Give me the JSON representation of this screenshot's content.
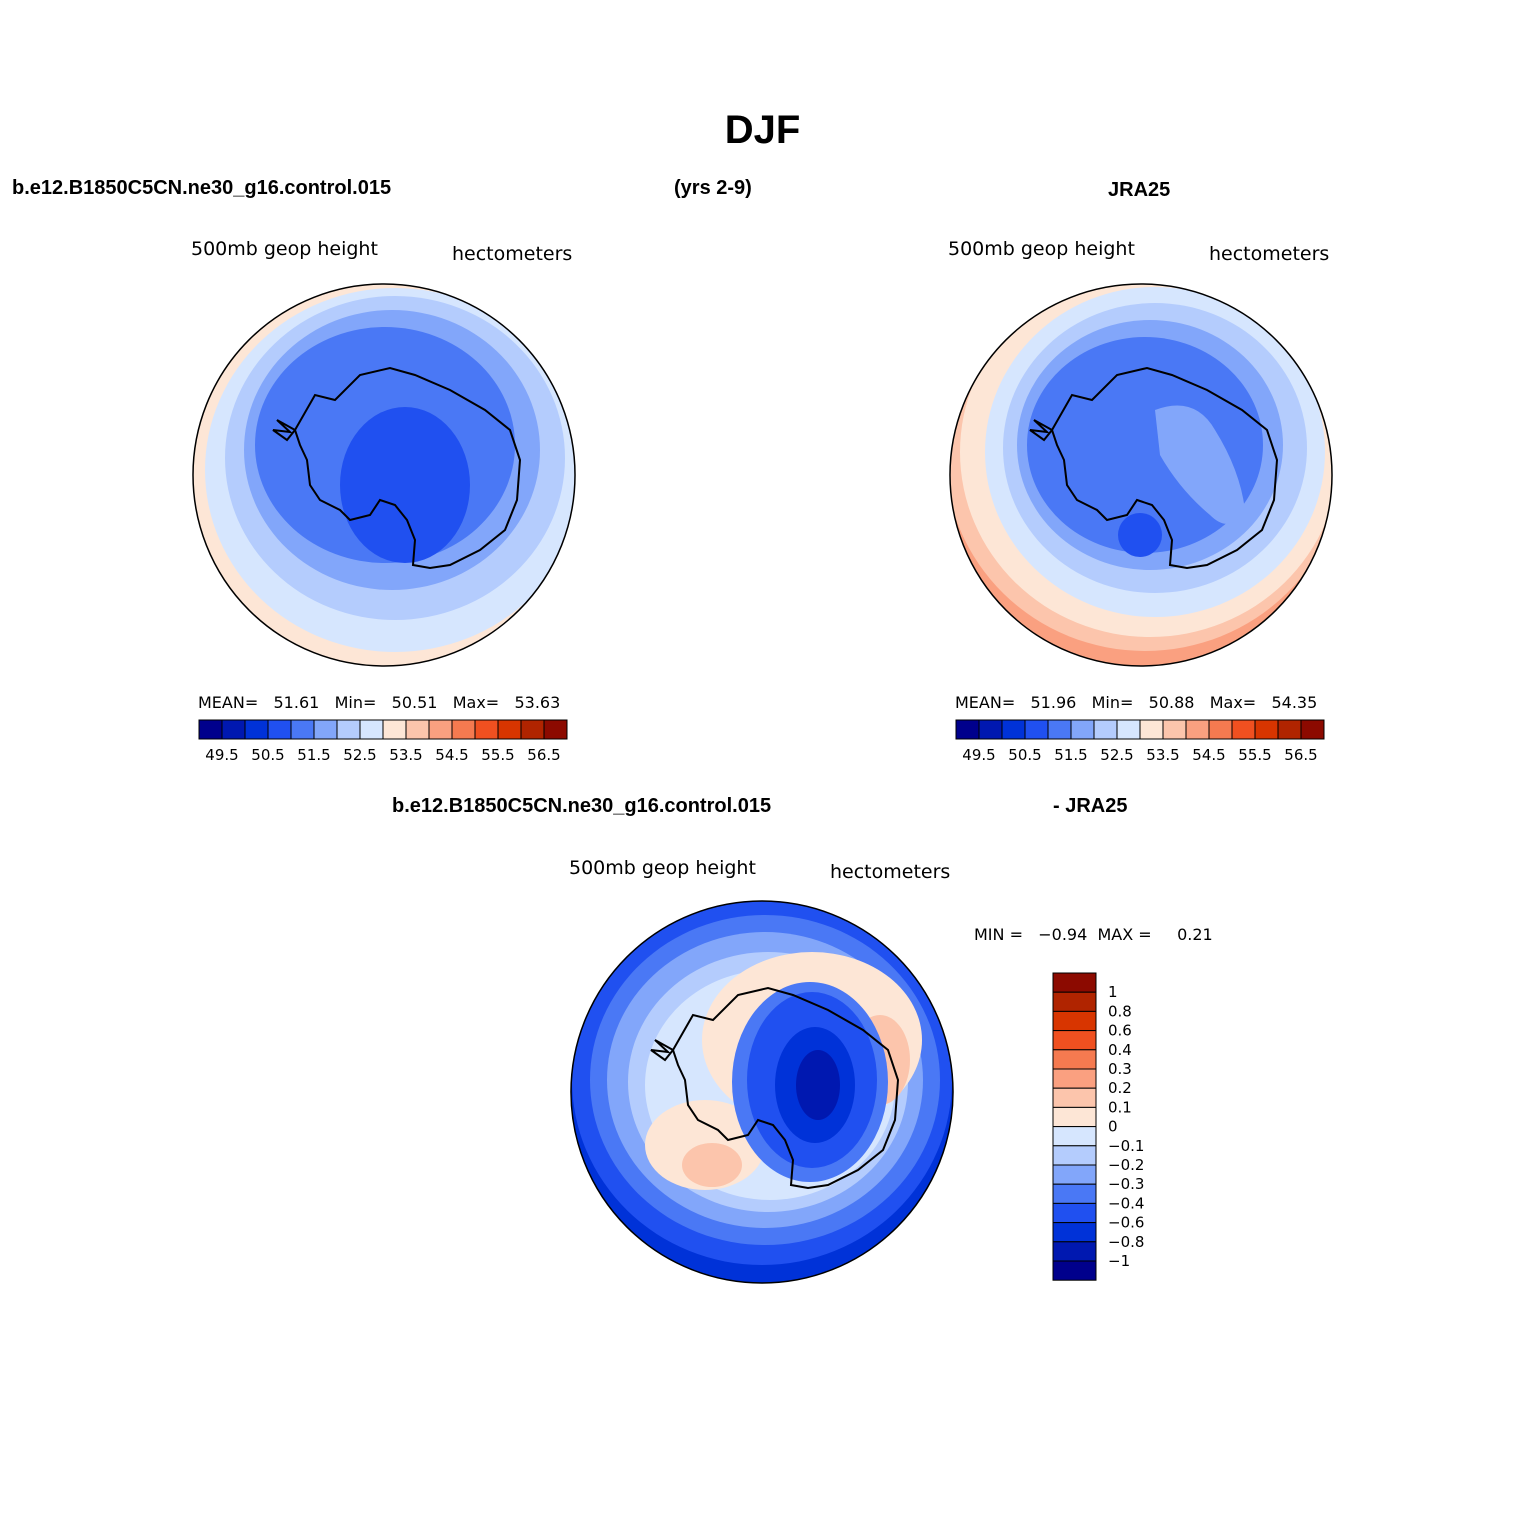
{
  "title": "DJF",
  "header": {
    "case": "b.e12.B1850C5CN.ne30_g16.control.015",
    "years": "(yrs 2-9)",
    "obs": "JRA25"
  },
  "panel_left": {
    "left_label": "500mb  geop  height",
    "right_label": "hectometers",
    "stats": {
      "mean_label": "MEAN=",
      "mean": "51.61",
      "min_label": "Min=",
      "min": "50.51",
      "max_label": "Max=",
      "max": "53.63"
    }
  },
  "panel_right": {
    "left_label": "500mb  geop  height",
    "right_label": "hectometers",
    "stats": {
      "mean_label": "MEAN=",
      "mean": "51.96",
      "min_label": "Min=",
      "min": "50.88",
      "max_label": "Max=",
      "max": "54.35"
    }
  },
  "diff_header": {
    "case": "b.e12.B1850C5CN.ne30_g16.control.015",
    "obs": "- JRA25"
  },
  "panel_diff": {
    "left_label": "500mb  geop  height",
    "right_label": "hectometers",
    "minmax": "MIN =   −0.94  MAX =     0.21"
  },
  "colorbar_top": {
    "colors": [
      "#00008c",
      "#0018b0",
      "#0032d8",
      "#2050f0",
      "#4a78f5",
      "#82a6fa",
      "#b4ccfd",
      "#d6e6fe",
      "#fde6d6",
      "#fcc5ac",
      "#faa080",
      "#f57a50",
      "#f05020",
      "#d83500",
      "#b02400",
      "#8c0a00"
    ],
    "tick_labels": [
      "49.5",
      "50.5",
      "51.5",
      "52.5",
      "53.5",
      "54.5",
      "55.5",
      "56.5"
    ]
  },
  "colorbar_diff": {
    "colors": [
      "#8c0a00",
      "#b02400",
      "#d83500",
      "#f05020",
      "#f57a50",
      "#faa080",
      "#fcc5ac",
      "#fde6d6",
      "#d6e6fe",
      "#b4ccfd",
      "#82a6fa",
      "#4a78f5",
      "#2050f0",
      "#0032d8",
      "#0018b0",
      "#00008c"
    ],
    "tick_labels": [
      "1",
      "0.8",
      "0.6",
      "0.4",
      "0.3",
      "0.2",
      "0.1",
      "0",
      "−0.1",
      "−0.2",
      "−0.3",
      "−0.4",
      "−0.6",
      "−0.8",
      "−1"
    ]
  }
}
